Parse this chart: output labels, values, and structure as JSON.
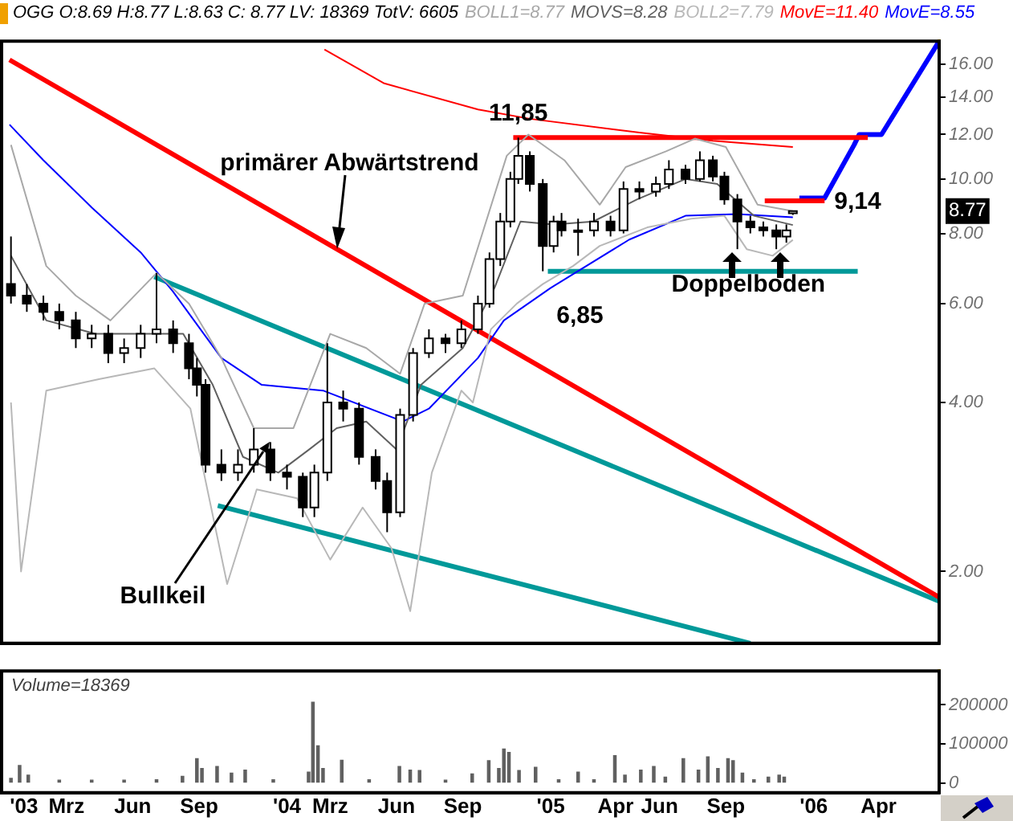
{
  "chart_data": [
    {
      "type": "candlestick",
      "title": "OGG O:8.69 H:8.77 L:8.63 C: 8.77 LV: 18369 TotV: 6605",
      "x": [
        "2002-12-14",
        "2003-01-05",
        "2003-01-28",
        "2003-02-19",
        "2003-03-14",
        "2003-04-05",
        "2003-04-28",
        "2003-05-20",
        "2003-06-12",
        "2003-07-04",
        "2003-07-27",
        "2003-08-18",
        "2003-08-29",
        "2003-09-10",
        "2003-10-02",
        "2003-10-25",
        "2003-11-16",
        "2003-12-09",
        "2004-01-01",
        "2004-01-23",
        "2004-02-08",
        "2004-02-26",
        "2004-03-19",
        "2004-04-10",
        "2004-05-03",
        "2004-05-19",
        "2004-06-06",
        "2004-06-24",
        "2004-07-16",
        "2004-08-08",
        "2004-08-30",
        "2004-09-22",
        "2004-10-08",
        "2004-10-23",
        "2004-11-06",
        "2004-11-17",
        "2004-12-03",
        "2004-12-21",
        "2005-01-05",
        "2005-01-16",
        "2005-02-08",
        "2005-03-02",
        "2005-03-25",
        "2005-04-12",
        "2005-05-04",
        "2005-05-27",
        "2005-06-14",
        "2005-07-07",
        "2005-07-27",
        "2005-08-14",
        "2005-08-30",
        "2005-09-17",
        "2005-10-05",
        "2005-10-23",
        "2005-11-10",
        "2005-11-24",
        "2005-12-03"
      ],
      "ohlc": [
        [
          6.5,
          7.9,
          6.0,
          6.2
        ],
        [
          6.2,
          6.5,
          5.8,
          6.0
        ],
        [
          6.0,
          6.2,
          5.6,
          5.8
        ],
        [
          5.8,
          6.0,
          5.4,
          5.6
        ],
        [
          5.6,
          5.8,
          5.0,
          5.2
        ],
        [
          5.2,
          5.5,
          5.0,
          5.3
        ],
        [
          5.3,
          5.5,
          4.7,
          4.9
        ],
        [
          4.9,
          5.2,
          4.7,
          5.0
        ],
        [
          5.0,
          5.5,
          4.8,
          5.3
        ],
        [
          5.3,
          6.8,
          5.1,
          5.4
        ],
        [
          5.4,
          5.6,
          4.9,
          5.1
        ],
        [
          5.1,
          5.3,
          4.4,
          4.6
        ],
        [
          4.6,
          4.8,
          4.1,
          4.3
        ],
        [
          4.3,
          4.4,
          3.0,
          3.1
        ],
        [
          3.1,
          3.3,
          2.9,
          3.0
        ],
        [
          3.0,
          3.3,
          2.9,
          3.1
        ],
        [
          3.1,
          3.6,
          3.0,
          3.3
        ],
        [
          3.3,
          3.4,
          2.9,
          3.0
        ],
        [
          3.0,
          3.1,
          2.8,
          2.95
        ],
        [
          2.95,
          3.0,
          2.5,
          2.6
        ],
        [
          2.6,
          3.1,
          2.5,
          3.0
        ],
        [
          3.0,
          5.1,
          2.9,
          4.0
        ],
        [
          4.0,
          4.2,
          3.7,
          3.9
        ],
        [
          3.9,
          4.0,
          3.1,
          3.2
        ],
        [
          3.2,
          3.3,
          2.8,
          2.9
        ],
        [
          2.9,
          3.0,
          2.35,
          2.55
        ],
        [
          2.55,
          3.9,
          2.5,
          3.8
        ],
        [
          3.8,
          5.0,
          3.7,
          4.9
        ],
        [
          4.9,
          5.4,
          4.8,
          5.2
        ],
        [
          5.2,
          5.3,
          4.9,
          5.1
        ],
        [
          5.1,
          5.6,
          5.0,
          5.4
        ],
        [
          5.4,
          6.2,
          5.3,
          6.0
        ],
        [
          6.0,
          7.4,
          5.9,
          7.2
        ],
        [
          7.2,
          8.7,
          7.0,
          8.4
        ],
        [
          8.4,
          10.3,
          8.2,
          10.0
        ],
        [
          10.0,
          11.85,
          9.8,
          11.0
        ],
        [
          11.0,
          11.2,
          9.5,
          9.8
        ],
        [
          9.8,
          10.0,
          6.85,
          7.6
        ],
        [
          7.6,
          8.6,
          7.4,
          8.4
        ],
        [
          8.4,
          8.7,
          7.9,
          8.1
        ],
        [
          8.1,
          8.5,
          7.3,
          8.1
        ],
        [
          8.1,
          8.7,
          7.9,
          8.4
        ],
        [
          8.4,
          8.6,
          7.9,
          8.1
        ],
        [
          8.1,
          9.9,
          8.0,
          9.6
        ],
        [
          9.6,
          9.9,
          9.2,
          9.5
        ],
        [
          9.5,
          10.1,
          9.3,
          9.8
        ],
        [
          9.8,
          10.8,
          9.6,
          10.4
        ],
        [
          10.4,
          10.6,
          9.8,
          10.0
        ],
        [
          10.0,
          11.2,
          9.9,
          10.8
        ],
        [
          10.8,
          11.0,
          9.9,
          10.1
        ],
        [
          10.1,
          10.3,
          9.0,
          9.2
        ],
        [
          9.2,
          9.4,
          7.5,
          8.4
        ],
        [
          8.4,
          8.6,
          8.0,
          8.2
        ],
        [
          8.2,
          8.4,
          7.9,
          8.1
        ],
        [
          8.1,
          8.3,
          7.5,
          7.9
        ],
        [
          7.9,
          8.3,
          7.7,
          8.1
        ],
        [
          8.69,
          8.77,
          8.63,
          8.77
        ]
      ],
      "series": [
        {
          "type": "line",
          "name": "BOLL1=8.77",
          "color": "#a8a8a8",
          "x": [
            "2002-12-14",
            "2003-02-01",
            "2003-03-14",
            "2003-05-01",
            "2003-07-04",
            "2003-08-18",
            "2003-10-02",
            "2003-11-16",
            "2004-01-10",
            "2004-03-01",
            "2004-04-20",
            "2004-06-06",
            "2004-07-10",
            "2004-09-01",
            "2004-11-01",
            "2004-12-01",
            "2005-01-20",
            "2005-03-10",
            "2005-04-15",
            "2005-06-10",
            "2005-07-20",
            "2005-09-01",
            "2005-10-15",
            "2005-12-03"
          ],
          "values": [
            11.5,
            7.0,
            6.2,
            5.6,
            6.8,
            6.0,
            4.8,
            3.6,
            3.6,
            5.3,
            5.0,
            4.5,
            6.0,
            6.2,
            11.0,
            12.0,
            10.8,
            9.0,
            10.5,
            11.2,
            11.8,
            11.4,
            9.0,
            8.77
          ]
        },
        {
          "type": "line",
          "name": "MOVS=8.28",
          "color": "#606060",
          "x": [
            "2002-12-14",
            "2003-02-01",
            "2003-04-10",
            "2003-06-12",
            "2003-08-10",
            "2003-09-20",
            "2003-11-01",
            "2003-12-20",
            "2004-02-01",
            "2004-03-10",
            "2004-04-20",
            "2004-06-01",
            "2004-07-05",
            "2004-09-01",
            "2004-10-15",
            "2004-11-20",
            "2005-01-05",
            "2005-03-01",
            "2005-05-01",
            "2005-07-07",
            "2005-08-20",
            "2005-10-10",
            "2005-12-03"
          ],
          "values": [
            7.3,
            5.6,
            5.3,
            5.3,
            5.3,
            4.3,
            3.2,
            3.0,
            3.3,
            3.6,
            3.7,
            3.3,
            4.3,
            5.0,
            6.4,
            8.4,
            8.3,
            8.4,
            9.2,
            10.0,
            9.8,
            8.6,
            8.28
          ]
        },
        {
          "type": "line",
          "name": "BOLL2=7.79",
          "color": "#b8b8b8",
          "x": [
            "2002-12-14",
            "2002-12-28",
            "2003-02-01",
            "2003-04-15",
            "2003-07-01",
            "2003-08-20",
            "2003-10-10",
            "2003-11-20",
            "2004-01-15",
            "2004-03-01",
            "2004-04-15",
            "2004-05-25",
            "2004-06-20",
            "2004-07-20",
            "2004-08-30",
            "2004-09-15",
            "2004-10-10",
            "2004-11-15",
            "2004-12-21",
            "2005-02-01",
            "2005-03-10",
            "2005-05-15",
            "2005-07-15",
            "2005-08-30",
            "2005-09-30",
            "2005-11-05",
            "2005-12-03"
          ],
          "values": [
            4.0,
            2.0,
            4.2,
            4.4,
            4.6,
            3.9,
            1.9,
            2.8,
            2.7,
            2.1,
            2.6,
            2.2,
            1.7,
            3.0,
            4.2,
            4.0,
            5.4,
            6.0,
            6.5,
            7.0,
            7.6,
            8.2,
            8.5,
            8.6,
            7.5,
            7.3,
            7.79
          ]
        },
        {
          "type": "line",
          "name": "MovE=11.40",
          "color": "#ff0000",
          "x": [
            "2004-02-22",
            "2004-05-15",
            "2004-09-22",
            "2004-12-03",
            "2005-05-04",
            "2005-08-14",
            "2005-12-03"
          ],
          "values": [
            17.0,
            14.8,
            13.3,
            12.8,
            12.1,
            11.7,
            11.4
          ]
        },
        {
          "type": "line",
          "name": "MovE=8.55",
          "color": "#0000ff",
          "x": [
            "2002-12-12",
            "2003-01-28",
            "2003-04-05",
            "2003-06-12",
            "2003-07-27",
            "2003-10-02",
            "2003-11-27",
            "2004-02-20",
            "2004-06-10",
            "2004-07-16",
            "2004-09-22",
            "2004-10-28",
            "2005-01-01",
            "2005-04-20",
            "2005-07-07",
            "2005-09-17",
            "2005-12-03"
          ],
          "values": [
            12.5,
            10.8,
            8.9,
            7.4,
            6.3,
            4.8,
            4.3,
            4.2,
            3.7,
            3.9,
            4.8,
            5.6,
            6.4,
            7.8,
            8.6,
            8.66,
            8.55
          ]
        },
        {
          "type": "line",
          "color": "#ff0000",
          "x": [
            "2002-12-12",
            "2006-06-24"
          ],
          "values": [
            16.3,
            1.8
          ]
        },
        {
          "type": "line",
          "color": "#009999",
          "x": [
            "2003-07-01",
            "2006-06-24"
          ],
          "values": [
            6.7,
            1.77
          ]
        },
        {
          "type": "line",
          "color": "#009999",
          "x": [
            "2003-09-27",
            "2005-10-05"
          ],
          "values": [
            2.62,
            1.49
          ]
        },
        {
          "type": "line",
          "color": "#ff0000",
          "x": [
            "2004-11-10",
            "2006-03-17"
          ],
          "values": [
            11.85,
            11.85
          ]
        },
        {
          "type": "line",
          "color": "#009999",
          "x": [
            "2004-12-28",
            "2006-03-03"
          ],
          "values": [
            6.85,
            6.85
          ]
        },
        {
          "type": "line",
          "color": "#ff0000",
          "x": [
            "2005-10-25",
            "2006-01-16"
          ],
          "values": [
            9.14,
            9.14
          ]
        },
        {
          "type": "line",
          "color": "#0000ff",
          "x": [
            "2005-12-12",
            "2006-01-16",
            "2006-02-26",
            "2006-03-05",
            "2006-04-05",
            "2006-06-24"
          ],
          "values": [
            9.25,
            9.25,
            11.5,
            12.0,
            12.0,
            17.6
          ]
        }
      ],
      "log": "y",
      "xlim": [
        "2002-12-01",
        "2006-06-24"
      ],
      "ylim": [
        1.49,
        17.6
      ],
      "yticks": [
        {
          "value": 2,
          "label": "2.00"
        },
        {
          "value": 4,
          "label": "4.00"
        },
        {
          "value": 6,
          "label": "6.00"
        },
        {
          "value": 8,
          "label": "8.00"
        },
        {
          "value": 10,
          "label": "10.00"
        },
        {
          "value": 12,
          "label": "12.00"
        },
        {
          "value": 14,
          "label": "14.00"
        },
        {
          "value": 16,
          "label": "16.00"
        }
      ],
      "tick_labels": "y",
      "legend": "top",
      "annotations": [
        {
          "text": "primärer Abwärtstrend",
          "x": "2004-03-10",
          "y": 7.5
        },
        {
          "text": "11,85",
          "x": "2004-11-17",
          "y": 11.85
        },
        {
          "text": "6,85",
          "x": "2004-12-28",
          "y": 6.85
        },
        {
          "text": "9,14",
          "x": "2006-01-16",
          "y": 9.14
        },
        {
          "text": "Doppelboden",
          "x": "2005-09-10",
          "y": 7.4
        },
        {
          "text": "Bullkeil",
          "x": "2003-12-09",
          "y": 3.4
        },
        "8.77"
      ]
    },
    {
      "type": "bar",
      "title": "Volume=18369",
      "color": "#606060",
      "x": [
        "2002-12-14",
        "2002-12-26",
        "2003-01-07",
        "2003-02-19",
        "2003-04-05",
        "2003-05-20",
        "2003-07-04",
        "2003-08-09",
        "2003-08-29",
        "2003-09-05",
        "2003-09-26",
        "2003-10-16",
        "2003-11-04",
        "2003-12-13",
        "2004-01-31",
        "2004-02-06",
        "2004-02-13",
        "2004-02-20",
        "2004-03-17",
        "2004-04-24",
        "2004-06-05",
        "2004-06-20",
        "2004-07-03",
        "2004-08-08",
        "2004-09-14",
        "2004-10-07",
        "2004-10-21",
        "2004-10-28",
        "2004-11-04",
        "2004-11-18",
        "2004-12-11",
        "2005-01-12",
        "2005-02-08",
        "2005-03-02",
        "2005-03-31",
        "2005-04-14",
        "2005-05-06",
        "2005-05-24",
        "2005-06-09",
        "2005-07-04",
        "2005-07-25",
        "2005-08-07",
        "2005-08-21",
        "2005-09-04",
        "2005-09-11",
        "2005-09-24",
        "2005-10-10",
        "2005-10-30",
        "2005-11-14",
        "2005-11-21"
      ],
      "values": [
        12000,
        45000,
        20000,
        7000,
        7000,
        7000,
        8000,
        17000,
        62000,
        37000,
        42000,
        25000,
        33000,
        8000,
        28000,
        207000,
        95000,
        37000,
        58000,
        8000,
        42000,
        33000,
        32000,
        7000,
        23000,
        57000,
        37000,
        87000,
        78000,
        32000,
        40000,
        8000,
        28000,
        8000,
        70000,
        20000,
        33000,
        42000,
        15000,
        62000,
        33000,
        67000,
        37000,
        62000,
        57000,
        25000,
        8000,
        15000,
        20000,
        15000
      ],
      "xlim": [
        "2002-12-01",
        "2006-06-24"
      ],
      "xticks": [
        {
          "value": "2003-01-01",
          "label": "'03"
        },
        {
          "value": "2003-03-01",
          "label": "Mrz"
        },
        {
          "value": "2003-06-01",
          "label": "Jun"
        },
        {
          "value": "2003-09-01",
          "label": "Sep"
        },
        {
          "value": "2004-01-01",
          "label": "'04"
        },
        {
          "value": "2004-03-01",
          "label": "Mrz"
        },
        {
          "value": "2004-06-01",
          "label": "Jun"
        },
        {
          "value": "2004-09-01",
          "label": "Sep"
        },
        {
          "value": "2005-01-01",
          "label": "'05"
        },
        {
          "value": "2005-04-01",
          "label": "Apr"
        },
        {
          "value": "2005-06-01",
          "label": "Jun"
        },
        {
          "value": "2005-09-01",
          "label": "Sep"
        },
        {
          "value": "2006-01-01",
          "label": "'06"
        },
        {
          "value": "2006-04-01",
          "label": "Apr"
        }
      ],
      "ylim": [
        -25000,
        287000
      ],
      "yticks": [
        0,
        100000,
        200000
      ]
    }
  ]
}
